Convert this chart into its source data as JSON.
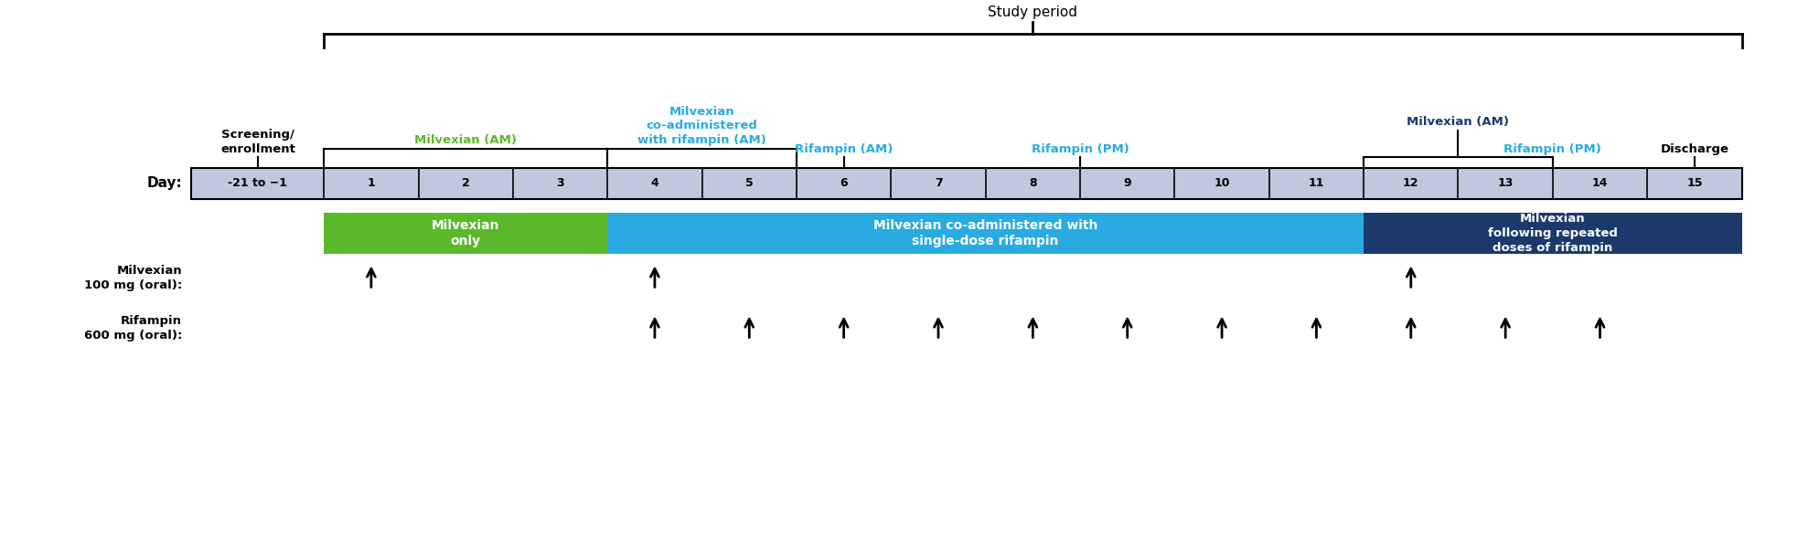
{
  "days": [
    "-21 to −1",
    "1",
    "2",
    "3",
    "4",
    "5",
    "6",
    "7",
    "8",
    "9",
    "10",
    "11",
    "12",
    "13",
    "14",
    "15"
  ],
  "bar_color": "#bfc8dc",
  "green_color": "#5cb82b",
  "cyan_color": "#29abe2",
  "dark_blue_color": "#1b3a6b",
  "study_period_label": "Study period",
  "screening_label": "Screening/\nenrollment",
  "milvexian_am_label_green": "Milvexian (AM)",
  "milvexian_coadmin_label": "Milvexian\nco-administered\nwith rifampin (AM)",
  "rifampin_am_label": "Rifampin (AM)",
  "rifampin_pm_label1": "Rifampin (PM)",
  "milvexian_am_label_blue": "Milvexian (AM)",
  "rifampin_pm_label2": "Rifampin (PM)",
  "discharge_label": "Discharge",
  "period1_label": "Milvexian\nonly",
  "period2_label": "Milvexian co-administered with\nsingle-dose rifampin",
  "period3_label": "Milvexian\nfollowing repeated\ndoses of rifampin",
  "milvexian_dose_days": [
    1,
    4,
    12
  ],
  "rifampin_dose_days": [
    4,
    5,
    6,
    7,
    8,
    9,
    10,
    11,
    12,
    13,
    14
  ],
  "day_label": "Day:",
  "milvexian_row_label": "Milvexian\n100 mg (oral):",
  "rifampin_row_label": "Rifampin\n600 mg (oral):"
}
